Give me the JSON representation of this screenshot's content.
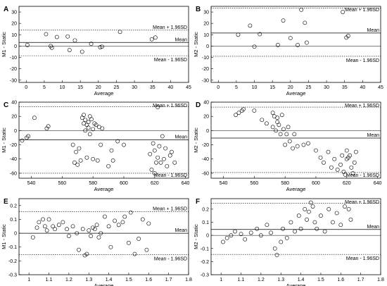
{
  "chart_data": [
    {
      "panel": "A",
      "type": "scatter",
      "xlabel": "Average",
      "ylabel": "M1 - Static",
      "xlim": [
        -2,
        45
      ],
      "ylim": [
        -32,
        35
      ],
      "xticks": [
        0,
        5,
        10,
        15,
        20,
        25,
        30,
        35,
        40,
        45
      ],
      "yticks": [
        -30,
        -20,
        -10,
        0,
        10,
        20,
        30
      ],
      "mean": 3.2,
      "upper": 14.0,
      "lower": -8.5,
      "annotations": {
        "upper": "Mean + 1.96SD",
        "mean": "Mean",
        "lower": "Mean - 1.96SD"
      },
      "x": [
        0.3,
        5.5,
        6.8,
        7.1,
        8.5,
        11.5,
        12.0,
        13.5,
        15.5,
        18.0,
        20.5,
        21.0,
        26.0,
        34.8,
        35.8
      ],
      "y": [
        1.0,
        10.5,
        0.0,
        -1.5,
        8.0,
        8.5,
        -3.5,
        5.0,
        -5.0,
        2.0,
        -1.0,
        -0.5,
        12.5,
        6.0,
        7.5
      ]
    },
    {
      "panel": "B",
      "type": "scatter",
      "xlabel": "Average",
      "ylabel": "M2 - Static",
      "xlim": [
        -2,
        45
      ],
      "ylim": [
        -32,
        35
      ],
      "xticks": [
        0,
        5,
        10,
        15,
        20,
        25,
        30,
        35,
        40,
        45
      ],
      "yticks": [
        -30,
        -20,
        -10,
        0,
        10,
        20,
        30
      ],
      "mean": 11.5,
      "upper": 33.5,
      "lower": -9.0,
      "annotations": {
        "upper": "Mean + 1.96SD",
        "mean": "Mean",
        "lower": "Mean - 1.96SD"
      },
      "x": [
        5.5,
        8.8,
        10.0,
        11.5,
        16.5,
        18.0,
        20.0,
        22.0,
        23.0,
        24.0,
        24.5,
        34.5,
        35.5,
        36.0
      ],
      "y": [
        10.0,
        18.0,
        -0.5,
        10.5,
        1.0,
        22.5,
        7.0,
        1.0,
        32.0,
        20.5,
        3.0,
        30.0,
        7.5,
        9.0
      ]
    },
    {
      "panel": "C",
      "type": "scatter",
      "xlabel": "Average",
      "ylabel": "M1 - Static",
      "xlim": [
        532,
        642
      ],
      "ylim": [
        -67,
        40
      ],
      "xticks": [
        540,
        560,
        580,
        600,
        620,
        640
      ],
      "yticks": [
        -60,
        -40,
        -20,
        0,
        20,
        40
      ],
      "mean": -13.0,
      "upper": 33.5,
      "lower": -60.0,
      "annotations": {
        "upper": "Mean + 1.96SD",
        "mean": "Mean",
        "lower": "Mean - 1.96SD"
      },
      "x": [
        534,
        537,
        538,
        542,
        550,
        551,
        567,
        568,
        569,
        570,
        571,
        572,
        573,
        574,
        574,
        575,
        575,
        576,
        576,
        577,
        577,
        578,
        578,
        579,
        580,
        580,
        581,
        582,
        583,
        584,
        585,
        586,
        590,
        592,
        593,
        596,
        600,
        617,
        618,
        619,
        620,
        620,
        621,
        622,
        622,
        623,
        624,
        625,
        626,
        627,
        628,
        630,
        631,
        633
      ],
      "y": [
        -14,
        -10,
        -8,
        18,
        3,
        6,
        -20,
        -45,
        -30,
        -48,
        -25,
        -42,
        18,
        10,
        22,
        0,
        15,
        8,
        -38,
        12,
        4,
        -5,
        20,
        16,
        -40,
        2,
        10,
        8,
        -42,
        5,
        -20,
        3,
        -50,
        -28,
        -42,
        -15,
        -20,
        -33,
        -55,
        -18,
        -60,
        -28,
        -45,
        -38,
        33,
        -22,
        -45,
        -8,
        -40,
        -25,
        -50,
        -35,
        -30,
        -45
      ]
    },
    {
      "panel": "D",
      "type": "scatter",
      "xlabel": "Average",
      "ylabel": "M2 - Static",
      "xlim": [
        532,
        642
      ],
      "ylim": [
        -67,
        40
      ],
      "xticks": [
        540,
        560,
        580,
        600,
        620,
        640
      ],
      "yticks": [
        -60,
        -40,
        -20,
        0,
        20,
        40
      ],
      "mean": -10.5,
      "upper": 33.0,
      "lower": -59.0,
      "annotations": {
        "upper": "Mean + 1.96SD",
        "mean": "Mean",
        "lower": "Mean - 1.96SD"
      },
      "x": [
        548,
        550,
        552,
        553,
        560,
        565,
        568,
        572,
        572,
        573,
        574,
        575,
        575,
        576,
        577,
        578,
        579,
        580,
        581,
        582,
        583,
        585,
        586,
        588,
        592,
        595,
        600,
        603,
        605,
        608,
        610,
        612,
        614,
        616,
        617,
        618,
        619,
        620,
        620,
        621,
        622,
        623,
        624,
        625,
        626
      ],
      "y": [
        22,
        25,
        28,
        30,
        28,
        15,
        10,
        5,
        25,
        20,
        0,
        12,
        18,
        8,
        -5,
        22,
        2,
        -20,
        -5,
        5,
        -15,
        -25,
        -5,
        -22,
        -20,
        -18,
        -28,
        -38,
        -45,
        -30,
        -52,
        -40,
        -55,
        -48,
        -35,
        -58,
        -62,
        -40,
        -28,
        -38,
        -35,
        -52,
        -60,
        -45,
        -30
      ]
    },
    {
      "panel": "E",
      "type": "scatter",
      "xlabel": "Average",
      "ylabel": "M1 - Static",
      "xlim": [
        0.95,
        1.8
      ],
      "ylim": [
        -0.3,
        0.25
      ],
      "xticks": [
        1,
        1.1,
        1.2,
        1.3,
        1.4,
        1.5,
        1.6,
        1.7,
        1.8
      ],
      "yticks": [
        -0.3,
        -0.2,
        -0.1,
        0,
        0.1,
        0.2
      ],
      "mean": 0.0,
      "upper": 0.155,
      "lower": -0.155,
      "annotations": {
        "upper": "Mean + 1.96SD",
        "mean": "Mean",
        "lower": "Mean - 1.96SD"
      },
      "x": [
        1.02,
        1.04,
        1.05,
        1.07,
        1.08,
        1.09,
        1.1,
        1.12,
        1.13,
        1.15,
        1.17,
        1.19,
        1.2,
        1.22,
        1.24,
        1.25,
        1.27,
        1.28,
        1.29,
        1.3,
        1.31,
        1.32,
        1.33,
        1.34,
        1.35,
        1.36,
        1.38,
        1.4,
        1.41,
        1.43,
        1.45,
        1.47,
        1.48,
        1.5,
        1.51,
        1.53,
        1.55,
        1.57,
        1.59,
        1.6
      ],
      "y": [
        -0.03,
        0.04,
        0.08,
        0.1,
        0.05,
        0.02,
        0.1,
        0.05,
        0.03,
        0.06,
        0.08,
        0.03,
        -0.02,
        0.05,
        0.0,
        -0.12,
        0.03,
        -0.16,
        -0.15,
        0.02,
        -0.02,
        0.04,
        0.03,
        0.06,
        -0.03,
        0.0,
        0.12,
        0.05,
        -0.1,
        0.09,
        0.06,
        0.08,
        0.12,
        -0.07,
        0.15,
        -0.15,
        -0.04,
        0.1,
        -0.12,
        0.07
      ]
    },
    {
      "panel": "F",
      "type": "scatter",
      "xlabel": "Average",
      "ylabel": "M2 - Static",
      "xlim": [
        0.95,
        1.8
      ],
      "ylim": [
        -0.3,
        0.28
      ],
      "xticks": [
        1,
        1.1,
        1.2,
        1.3,
        1.4,
        1.5,
        1.6,
        1.7,
        1.8
      ],
      "yticks": [
        -0.3,
        -0.2,
        -0.1,
        0,
        0.1,
        0.2
      ],
      "mean": 0.045,
      "upper": 0.245,
      "lower": -0.145,
      "annotations": {
        "upper": "Mean + 1.96SD",
        "mean": "Mean",
        "lower": "Mean - 1.96SD"
      },
      "x": [
        1.01,
        1.03,
        1.05,
        1.07,
        1.1,
        1.12,
        1.15,
        1.18,
        1.2,
        1.23,
        1.25,
        1.27,
        1.28,
        1.3,
        1.31,
        1.33,
        1.35,
        1.37,
        1.39,
        1.4,
        1.42,
        1.43,
        1.44,
        1.45,
        1.46,
        1.47,
        1.48,
        1.5,
        1.52,
        1.54,
        1.56,
        1.58,
        1.6,
        1.62,
        1.64,
        1.65
      ],
      "y": [
        -0.05,
        -0.02,
        0.0,
        0.03,
        0.01,
        -0.03,
        0.02,
        0.05,
        0.0,
        0.08,
        0.02,
        -0.1,
        -0.15,
        -0.05,
        0.05,
        -0.02,
        0.1,
        0.03,
        0.15,
        0.05,
        0.2,
        0.12,
        0.18,
        0.25,
        0.22,
        0.1,
        0.05,
        0.15,
        0.03,
        0.2,
        0.1,
        0.17,
        0.08,
        0.22,
        0.2,
        0.12
      ]
    }
  ]
}
